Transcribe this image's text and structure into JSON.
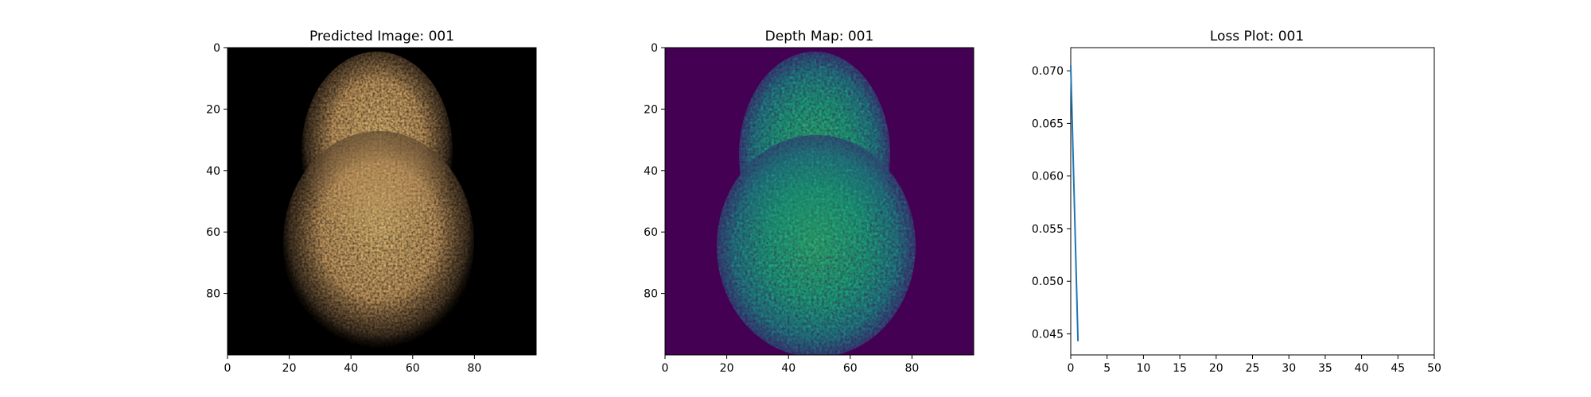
{
  "colors": {
    "background": "#ffffff",
    "axis": "#000000",
    "loss_line": "#1f77b4",
    "image_bg": "#000000",
    "depth_bg": "#440154"
  },
  "chart_data": [
    {
      "type": "heatmap",
      "title": "Predicted Image: 001",
      "xlabel": "",
      "ylabel": "",
      "xlim": [
        0,
        100
      ],
      "ylim": [
        100,
        0
      ],
      "xticks": [
        0,
        20,
        40,
        60,
        80
      ],
      "yticks": [
        0,
        20,
        40,
        60,
        80
      ],
      "colormap": "rgb",
      "background_color": "#000000",
      "blob_color": "#e8c07a"
    },
    {
      "type": "heatmap",
      "title": "Depth Map: 001",
      "xlabel": "",
      "ylabel": "",
      "xlim": [
        0,
        100
      ],
      "ylim": [
        100,
        0
      ],
      "xticks": [
        0,
        20,
        40,
        60,
        80
      ],
      "yticks": [
        0,
        20,
        40,
        60,
        80
      ],
      "colormap": "viridis",
      "background_color": "#440154",
      "blob_color": "#2aa38a"
    },
    {
      "type": "line",
      "title": "Loss Plot: 001",
      "xlabel": "",
      "ylabel": "",
      "xlim": [
        0,
        50
      ],
      "ylim": [
        0.043,
        0.0722
      ],
      "xticks": [
        0,
        5,
        10,
        15,
        20,
        25,
        30,
        35,
        40,
        45,
        50
      ],
      "yticks": [
        0.045,
        0.05,
        0.055,
        0.06,
        0.065,
        0.07
      ],
      "ytick_labels": [
        "0.045",
        "0.050",
        "0.055",
        "0.060",
        "0.065",
        "0.070"
      ],
      "grid": false,
      "series": [
        {
          "x": [
            0,
            1
          ],
          "y": [
            0.0705,
            0.0443
          ]
        }
      ]
    }
  ]
}
